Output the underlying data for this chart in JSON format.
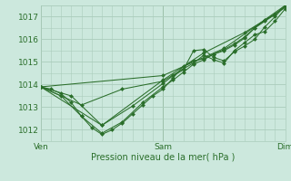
{
  "title": "Pression niveau de la mer( hPa )",
  "bg_color": "#cce8dd",
  "grid_color": "#aaccbb",
  "line_color": "#2a6e2a",
  "marker_color": "#2a6e2a",
  "xlim": [
    0,
    48
  ],
  "ylim": [
    1011.5,
    1017.5
  ],
  "yticks": [
    1012,
    1013,
    1014,
    1015,
    1016,
    1017
  ],
  "xtick_labels": [
    "Ven",
    "Sam",
    "Dim"
  ],
  "xtick_positions": [
    0,
    24,
    48
  ],
  "series": [
    [
      0,
      1013.9,
      2,
      1013.8,
      4,
      1013.6,
      6,
      1013.2,
      8,
      1012.6,
      10,
      1012.1,
      12,
      1011.8,
      14,
      1012.0,
      16,
      1012.3,
      18,
      1012.7,
      20,
      1013.1,
      22,
      1013.5,
      24,
      1013.8,
      26,
      1014.3,
      28,
      1014.8,
      30,
      1015.05,
      32,
      1015.15,
      34,
      1015.35,
      36,
      1015.55,
      38,
      1015.8,
      40,
      1016.1,
      42,
      1016.5,
      44,
      1016.85,
      46,
      1017.1,
      48,
      1017.5
    ],
    [
      0,
      1013.9,
      4,
      1013.5,
      8,
      1012.6,
      12,
      1011.85,
      16,
      1012.35,
      20,
      1013.2,
      24,
      1013.9,
      26,
      1014.2,
      28,
      1014.55,
      30,
      1014.9,
      32,
      1015.1,
      34,
      1015.35,
      36,
      1015.5,
      38,
      1015.75,
      40,
      1016.05,
      42,
      1016.5,
      44,
      1016.8,
      46,
      1017.1,
      48,
      1017.45
    ],
    [
      0,
      1013.9,
      6,
      1013.5,
      12,
      1012.2,
      18,
      1013.05,
      24,
      1014.05,
      26,
      1014.4,
      28,
      1014.65,
      30,
      1015.5,
      32,
      1015.55,
      34,
      1015.2,
      36,
      1015.05,
      38,
      1015.45,
      40,
      1015.7,
      42,
      1016.0,
      44,
      1016.55,
      46,
      1017.0,
      48,
      1017.5
    ],
    [
      0,
      1013.9,
      8,
      1013.1,
      16,
      1013.8,
      24,
      1014.15,
      28,
      1014.7,
      30,
      1014.95,
      32,
      1015.3,
      34,
      1015.1,
      36,
      1014.95,
      38,
      1015.5,
      40,
      1015.85,
      42,
      1016.2,
      44,
      1016.35,
      46,
      1016.8,
      48,
      1017.35
    ],
    [
      0,
      1013.9,
      24,
      1014.4,
      36,
      1015.6,
      48,
      1017.5
    ],
    [
      0,
      1013.9,
      12,
      1012.2,
      24,
      1014.2,
      32,
      1015.4,
      40,
      1016.3,
      48,
      1017.4
    ]
  ]
}
